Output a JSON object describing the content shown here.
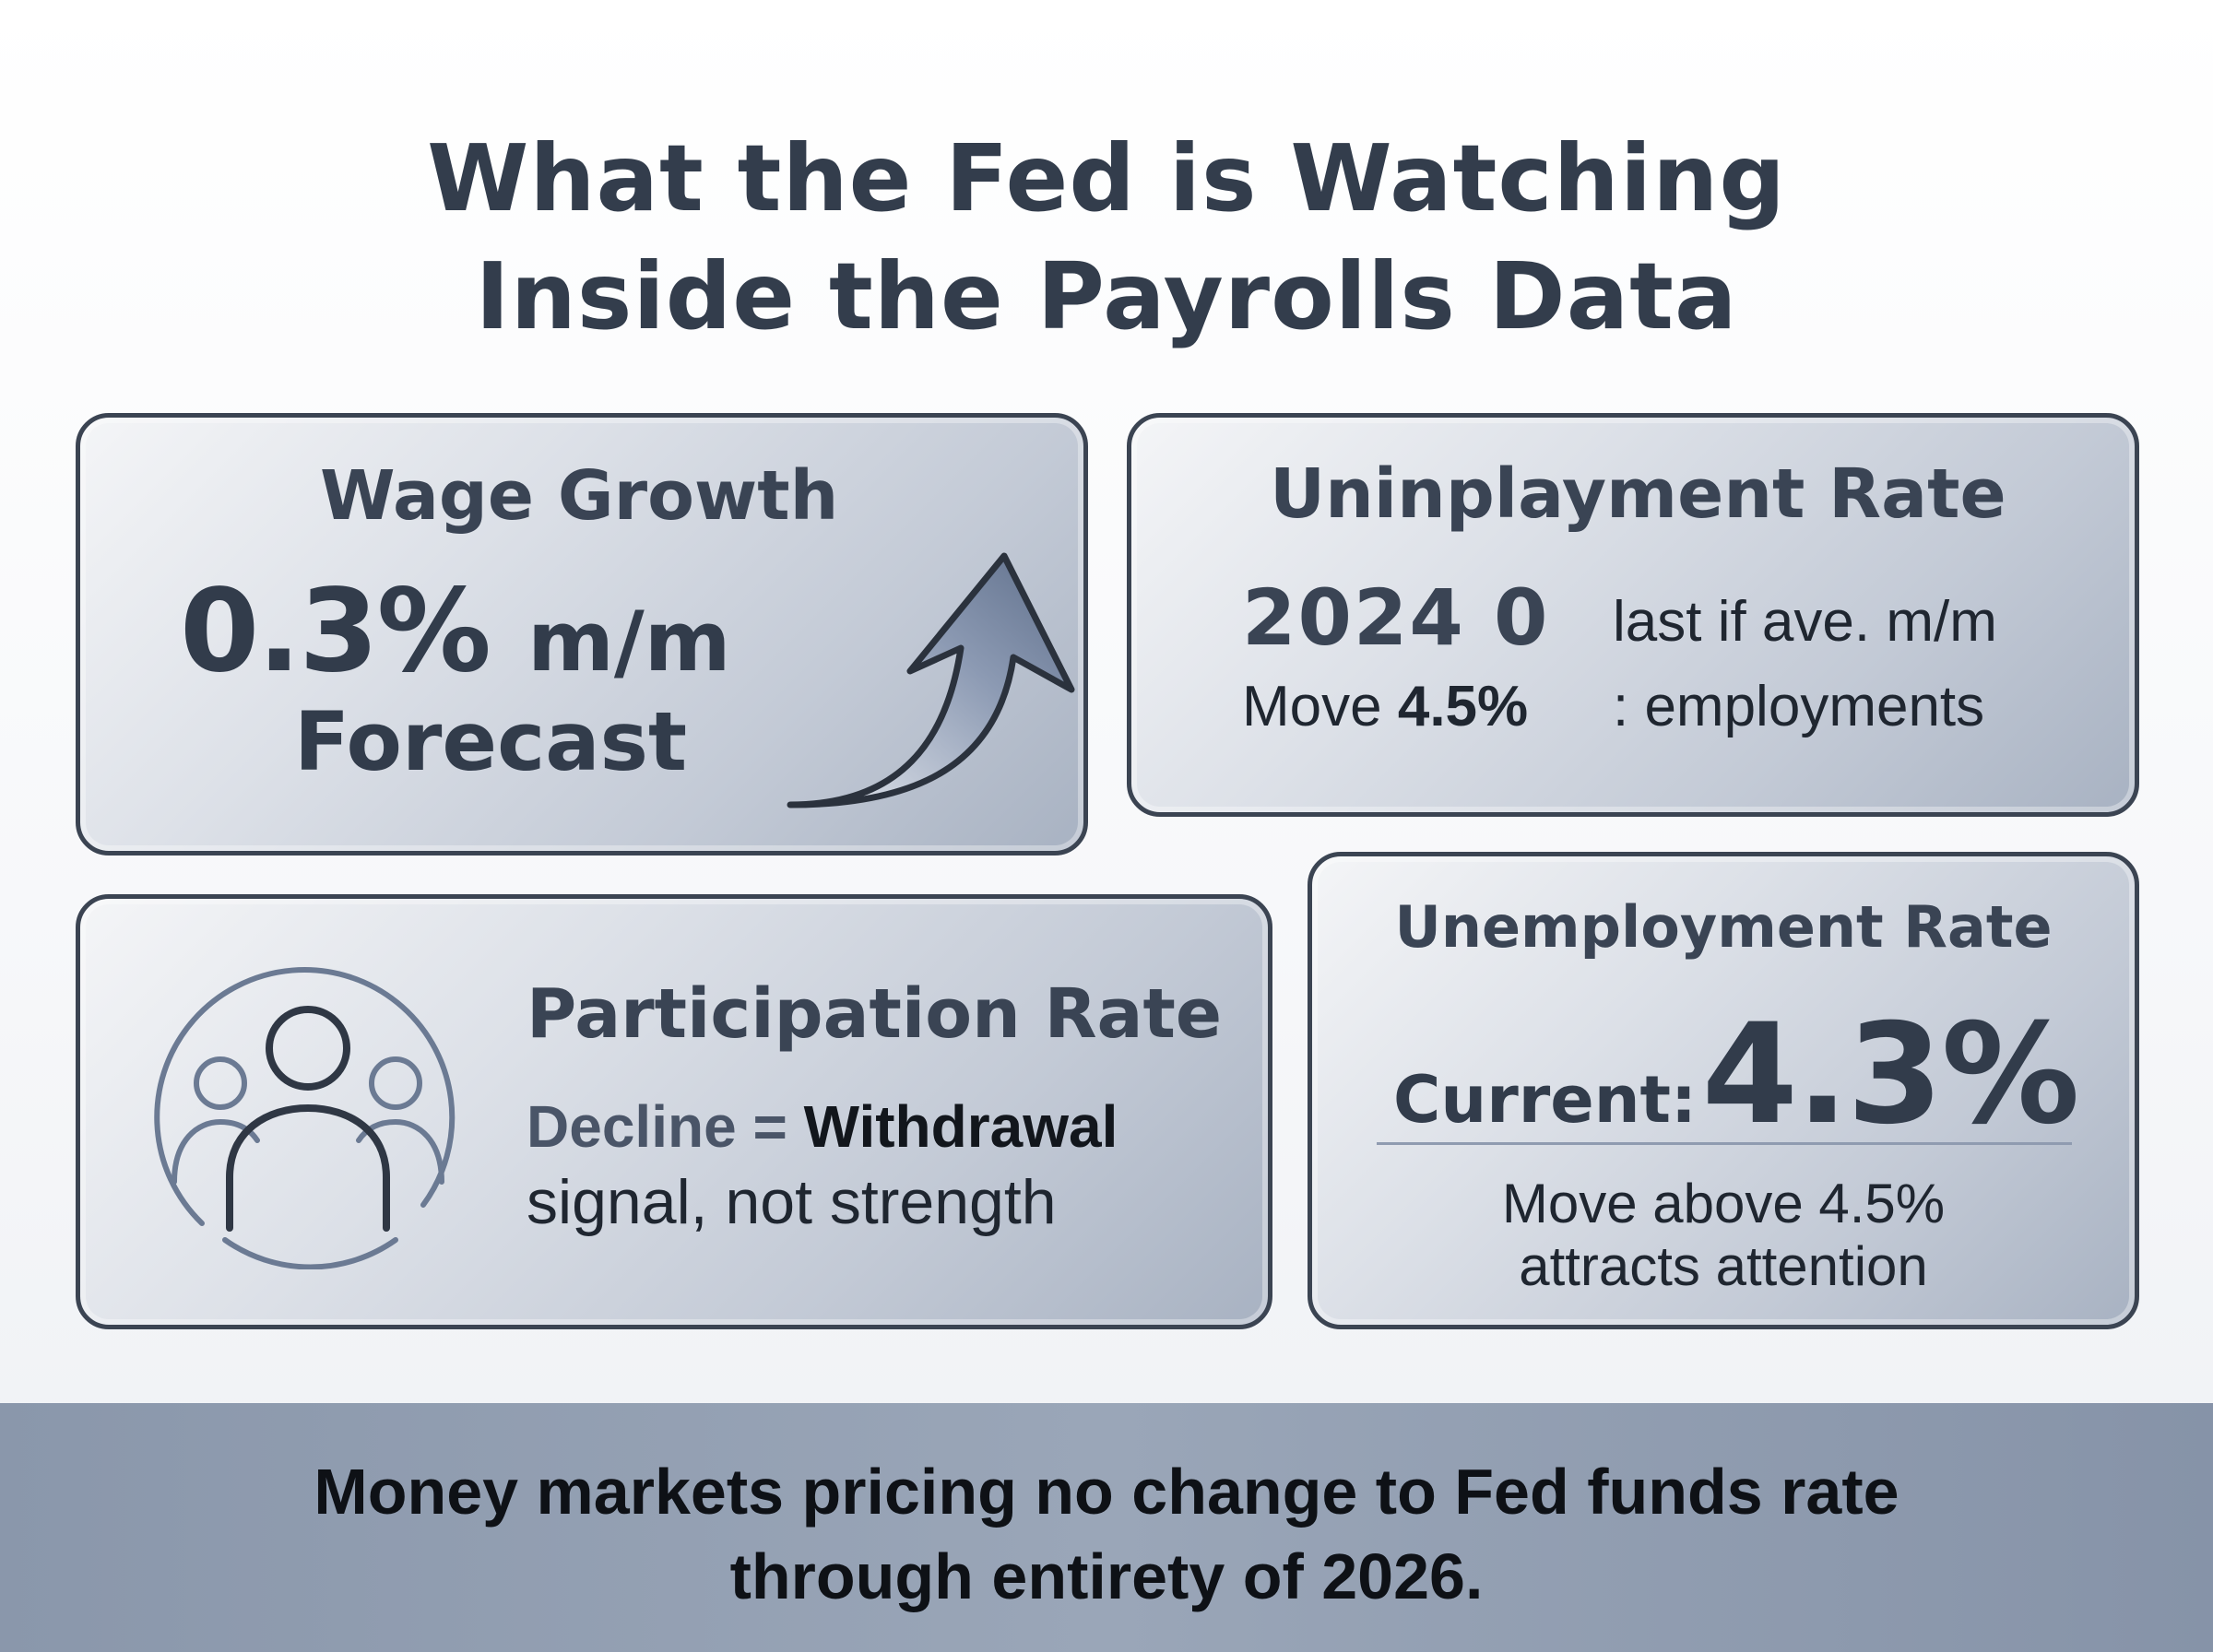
{
  "title": {
    "line1": "What the Fed is Watching",
    "line2": "Inside the Payrolls Data"
  },
  "wage_card": {
    "heading": "Wage Growth",
    "value": "0.3%",
    "unit": "m/m",
    "forecast": "Forecast",
    "icon": "trend-up-arrow-icon"
  },
  "uninployment_card": {
    "heading": "Uninplayment Rate",
    "year": "2024 0",
    "right_line1": "last if ave. m/m",
    "move_label": "Move",
    "move_value": "4.5%",
    "right_line2": ": employments"
  },
  "participation_card": {
    "heading": "Participation Rate",
    "line1_a": "Decline = ",
    "line1_b": "Withdrawal",
    "line2": "signal, not strength",
    "icon": "people-group-icon"
  },
  "unemployment_card": {
    "heading": "Unemployment Rate",
    "current_label": "Current:",
    "current_value": "4.3%",
    "note_line1": "Move above 4.5%",
    "note_line2": "attracts attention"
  },
  "banner": {
    "line1": "Money markets pricing no change to Fed funds rate",
    "line2": "through entirety of 2026."
  },
  "colors": {
    "title_text": "#333d4c",
    "card_border": "#3b4452",
    "banner_bg": "#8a97ab",
    "icon_stroke": "#6b7a93"
  }
}
